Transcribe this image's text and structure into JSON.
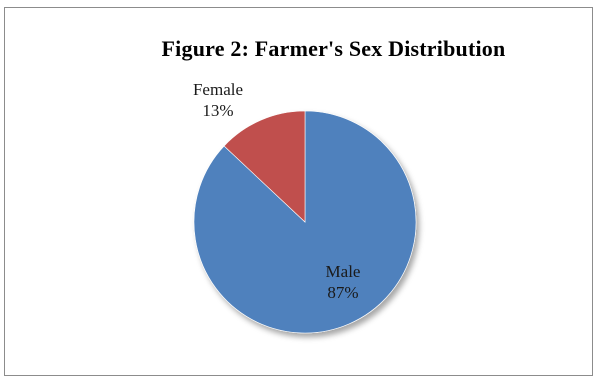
{
  "chart_data": {
    "type": "pie",
    "title": "Figure 2: Farmer's Sex Distribution",
    "slices": [
      {
        "name": "Male",
        "value": 87,
        "label": "87%",
        "color": "#4f81bd"
      },
      {
        "name": "Female",
        "value": 13,
        "label": "13%",
        "color": "#c0504d"
      }
    ],
    "start_angle_deg": 0,
    "direction": "clockwise",
    "legend": "none",
    "data_labels": "category name and percentage"
  }
}
